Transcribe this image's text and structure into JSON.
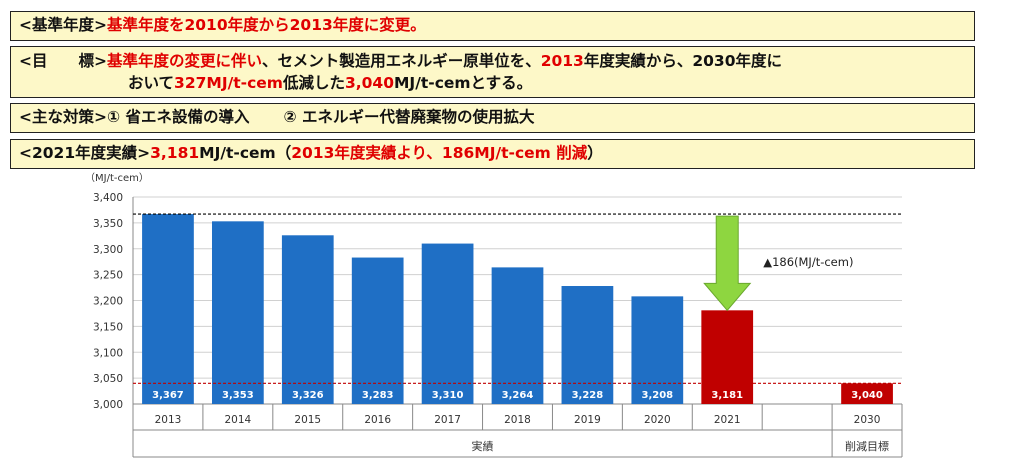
{
  "panels": {
    "base_year": {
      "label": "<基準年度>",
      "text": "基準年度を2010年度から2013年度に変更。"
    },
    "target": {
      "label": "<目　　標>",
      "line1_a": "基準年度の変更に伴い",
      "line1_b": "、セメント製造用エネルギー原単位を、",
      "line1_c": "2013",
      "line1_d": "年度実績から、2030年度に",
      "line2_a": "おいて",
      "line2_b": "327MJ/t-cem",
      "line2_c": "低減した",
      "line2_d": "3,040",
      "line2_e": "MJ/t-cemとする。"
    },
    "measures": {
      "label": "<主な対策>",
      "item1": "① 省エネ設備の導入",
      "item2": "② エネルギー代替廃棄物の使用拡大"
    },
    "result_2021": {
      "label": "<2021年度実績>",
      "value": "3,181",
      "unit": "MJ/t-cem",
      "note_open": "（",
      "note": "2013年度実績より、186MJ/t-cem 削減",
      "note_close": "）"
    }
  },
  "chart_data": {
    "type": "bar",
    "ylabel": "（MJ/t-cem）",
    "ylim": [
      3000,
      3400
    ],
    "yticks": [
      3000,
      3050,
      3100,
      3150,
      3200,
      3250,
      3300,
      3350,
      3400
    ],
    "ytick_labels": [
      "3,000",
      "3,050",
      "3,100",
      "3,150",
      "3,200",
      "3,250",
      "3,300",
      "3,350",
      "3,400"
    ],
    "categories": [
      "2013",
      "2014",
      "2015",
      "2016",
      "2017",
      "2018",
      "2019",
      "2020",
      "2021",
      "",
      "2030"
    ],
    "values": [
      3367,
      3353,
      3326,
      3283,
      3310,
      3264,
      3228,
      3208,
      3181,
      null,
      3040
    ],
    "value_labels": [
      "3,367",
      "3,353",
      "3,326",
      "3,283",
      "3,310",
      "3,264",
      "3,228",
      "3,208",
      "3,181",
      "",
      "3,040"
    ],
    "bar_colors": [
      "#1f6fc5",
      "#1f6fc5",
      "#1f6fc5",
      "#1f6fc5",
      "#1f6fc5",
      "#1f6fc5",
      "#1f6fc5",
      "#1f6fc5",
      "#c00000",
      null,
      "#c00000"
    ],
    "reference_lines": [
      {
        "value": 3367,
        "color": "#000000",
        "style": "dashed"
      },
      {
        "value": 3040,
        "color": "#c00000",
        "style": "dashed"
      }
    ],
    "groups": [
      {
        "label": "実績",
        "from": 0,
        "to": 9
      },
      {
        "label": "削減目標",
        "from": 10,
        "to": 10
      }
    ],
    "annotation": {
      "text": "▲186(MJ/t-cem)",
      "arrow_color": "#8ed640"
    },
    "grid": true
  }
}
